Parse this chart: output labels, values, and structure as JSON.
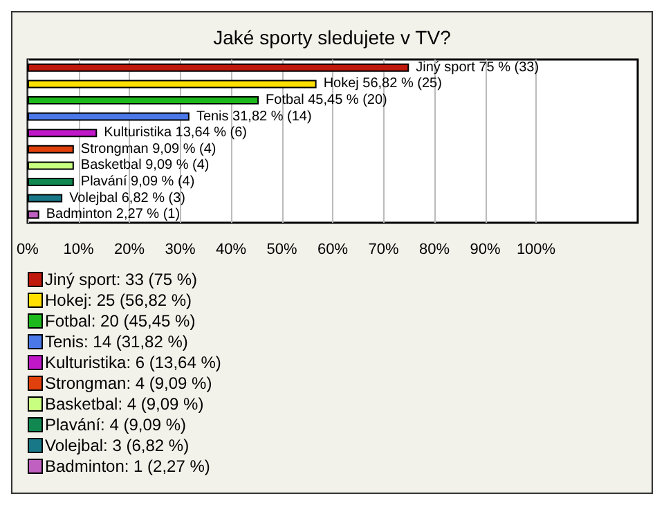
{
  "chart_data": {
    "type": "bar",
    "orientation": "horizontal",
    "title": "Jaké sporty sledujete v TV?",
    "categories": [
      null,
      null,
      null,
      null,
      null,
      null,
      null,
      null,
      null,
      null
    ],
    "series": [
      {
        "name": "Jiný sport: 33 (75 %)",
        "color": "#c0180c",
        "values": [
          75,
          null,
          null,
          null,
          null,
          null,
          null,
          null,
          null,
          null
        ],
        "value_labels": [
          "Jiný sport 75 % (33)",
          null,
          null,
          null,
          null,
          null,
          null,
          null,
          null,
          null
        ]
      },
      {
        "name": "Hokej: 25 (56,82 %)",
        "color": "#ffe000",
        "values": [
          null,
          56.82,
          null,
          null,
          null,
          null,
          null,
          null,
          null,
          null
        ],
        "value_labels": [
          null,
          "Hokej 56,82 % (25)",
          null,
          null,
          null,
          null,
          null,
          null,
          null,
          null
        ]
      },
      {
        "name": "Fotbal: 20 (45,45 %)",
        "color": "#1cb81c",
        "values": [
          null,
          null,
          45.45,
          null,
          null,
          null,
          null,
          null,
          null,
          null
        ],
        "value_labels": [
          null,
          null,
          "Fotbal 45,45 % (20)",
          null,
          null,
          null,
          null,
          null,
          null,
          null
        ]
      },
      {
        "name": "Tenis: 14 (31,82 %)",
        "color": "#4a78e8",
        "values": [
          null,
          null,
          null,
          31.82,
          null,
          null,
          null,
          null,
          null,
          null
        ],
        "value_labels": [
          null,
          null,
          null,
          "Tenis 31,82 % (14)",
          null,
          null,
          null,
          null,
          null,
          null
        ]
      },
      {
        "name": "Kulturistika: 6 (13,64 %)",
        "color": "#c018c8",
        "values": [
          null,
          null,
          null,
          null,
          13.64,
          null,
          null,
          null,
          null,
          null
        ],
        "value_labels": [
          null,
          null,
          null,
          null,
          "Kulturistika 13,64 % (6)",
          null,
          null,
          null,
          null,
          null
        ]
      },
      {
        "name": "Strongman: 4 (9,09 %)",
        "color": "#e0400c",
        "values": [
          null,
          null,
          null,
          null,
          null,
          9.09,
          null,
          null,
          null,
          null
        ],
        "value_labels": [
          null,
          null,
          null,
          null,
          null,
          "Strongman 9,09 % (4)",
          null,
          null,
          null,
          null
        ]
      },
      {
        "name": "Basketbal: 4 (9,09 %)",
        "color": "#c8ff80",
        "values": [
          null,
          null,
          null,
          null,
          null,
          null,
          9.09,
          null,
          null,
          null
        ],
        "value_labels": [
          null,
          null,
          null,
          null,
          null,
          null,
          "Basketbal 9,09 % (4)",
          null,
          null,
          null
        ]
      },
      {
        "name": "Plavání: 4 (9,09 %)",
        "color": "#108850",
        "values": [
          null,
          null,
          null,
          null,
          null,
          null,
          null,
          9.09,
          null,
          null
        ],
        "value_labels": [
          null,
          null,
          null,
          null,
          null,
          null,
          null,
          "Plavání 9,09 % (4)",
          null,
          null
        ]
      },
      {
        "name": "Volejbal: 3 (6,82 %)",
        "color": "#187888",
        "values": [
          null,
          null,
          null,
          null,
          null,
          null,
          null,
          null,
          6.82,
          null
        ],
        "value_labels": [
          null,
          null,
          null,
          null,
          null,
          null,
          null,
          null,
          "Volejbal 6,82 % (3)",
          null
        ]
      },
      {
        "name": "Badminton: 1 (2,27 %)",
        "color": "#c060c0",
        "values": [
          null,
          null,
          null,
          null,
          null,
          null,
          null,
          null,
          null,
          2.27
        ],
        "value_labels": [
          null,
          null,
          null,
          null,
          null,
          null,
          null,
          null,
          null,
          "Badminton 2,27 % (1)"
        ]
      }
    ],
    "xlim": [
      0,
      120
    ],
    "xticks": [
      {
        "value": 0,
        "label": "0%"
      },
      {
        "value": 10,
        "label": "10%"
      },
      {
        "value": 20,
        "label": "20%"
      },
      {
        "value": 30,
        "label": "30%"
      },
      {
        "value": 40,
        "label": "40%"
      },
      {
        "value": 50,
        "label": "50%"
      },
      {
        "value": 60,
        "label": "60%"
      },
      {
        "value": 70,
        "label": "70%"
      },
      {
        "value": 80,
        "label": "80%"
      },
      {
        "value": 90,
        "label": "90%"
      },
      {
        "value": 100,
        "label": "100%"
      }
    ],
    "grid": "x",
    "legend": "bottom left",
    "tick_labels": "x"
  }
}
